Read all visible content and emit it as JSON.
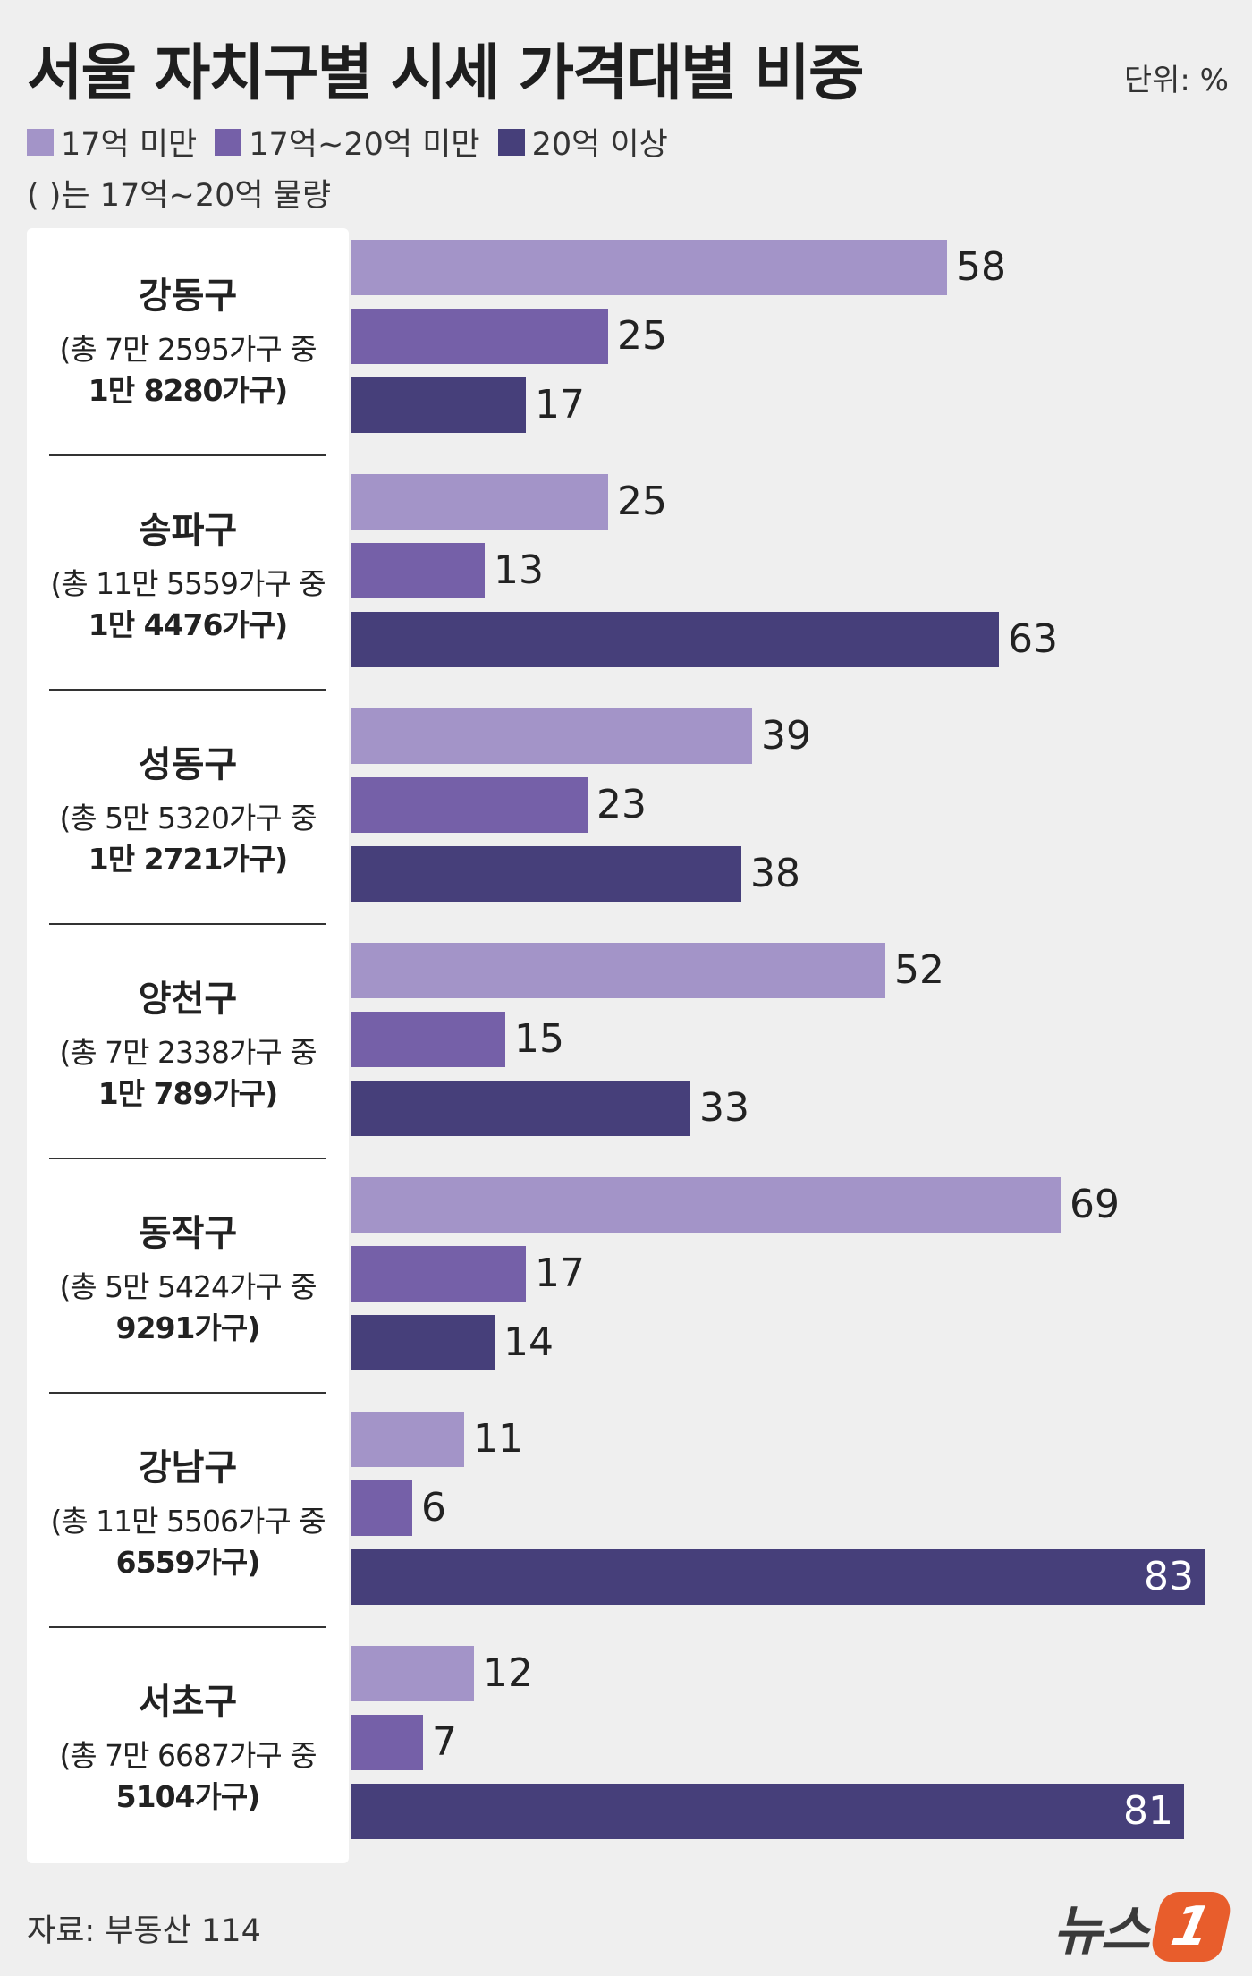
{
  "title": "서울 자치구별 시세 가격대별 비중",
  "unit": "단위: %",
  "note": "( )는 17억~20억 물량",
  "source": "자료: 부동산 114",
  "logo": {
    "text": "뉴스",
    "badge": "1"
  },
  "colors": {
    "low": "#a394c8",
    "mid": "#7560a8",
    "high": "#463f7a"
  },
  "chart_data": {
    "type": "bar",
    "orientation": "horizontal",
    "legend_position": "top-left",
    "xlim": [
      0,
      83
    ],
    "categories": [
      "강동구",
      "송파구",
      "성동구",
      "양천구",
      "동작구",
      "강남구",
      "서초구"
    ],
    "category_notes": [
      {
        "line1": "(총 7만 2595가구 중",
        "line2": "1만 8280가구)"
      },
      {
        "line1": "(총 11만 5559가구 중",
        "line2": "1만 4476가구)"
      },
      {
        "line1": "(총 5만 5320가구 중",
        "line2": "1만 2721가구)"
      },
      {
        "line1": "(총 7만 2338가구 중",
        "line2": "1만 789가구)"
      },
      {
        "line1": "(총 5만 5424가구 중",
        "line2": "9291가구)"
      },
      {
        "line1": "(총 11만 5506가구 중",
        "line2": "6559가구)"
      },
      {
        "line1": "(총 7만 6687가구 중",
        "line2": "5104가구)"
      }
    ],
    "series": [
      {
        "name": "17억 미만",
        "color": "#a394c8",
        "values": [
          58,
          25,
          39,
          52,
          69,
          11,
          12
        ]
      },
      {
        "name": "17억~20억 미만",
        "color": "#7560a8",
        "values": [
          25,
          13,
          23,
          15,
          17,
          6,
          7
        ]
      },
      {
        "name": "20억 이상",
        "color": "#463f7a",
        "values": [
          17,
          63,
          38,
          33,
          14,
          83,
          81
        ]
      }
    ]
  }
}
